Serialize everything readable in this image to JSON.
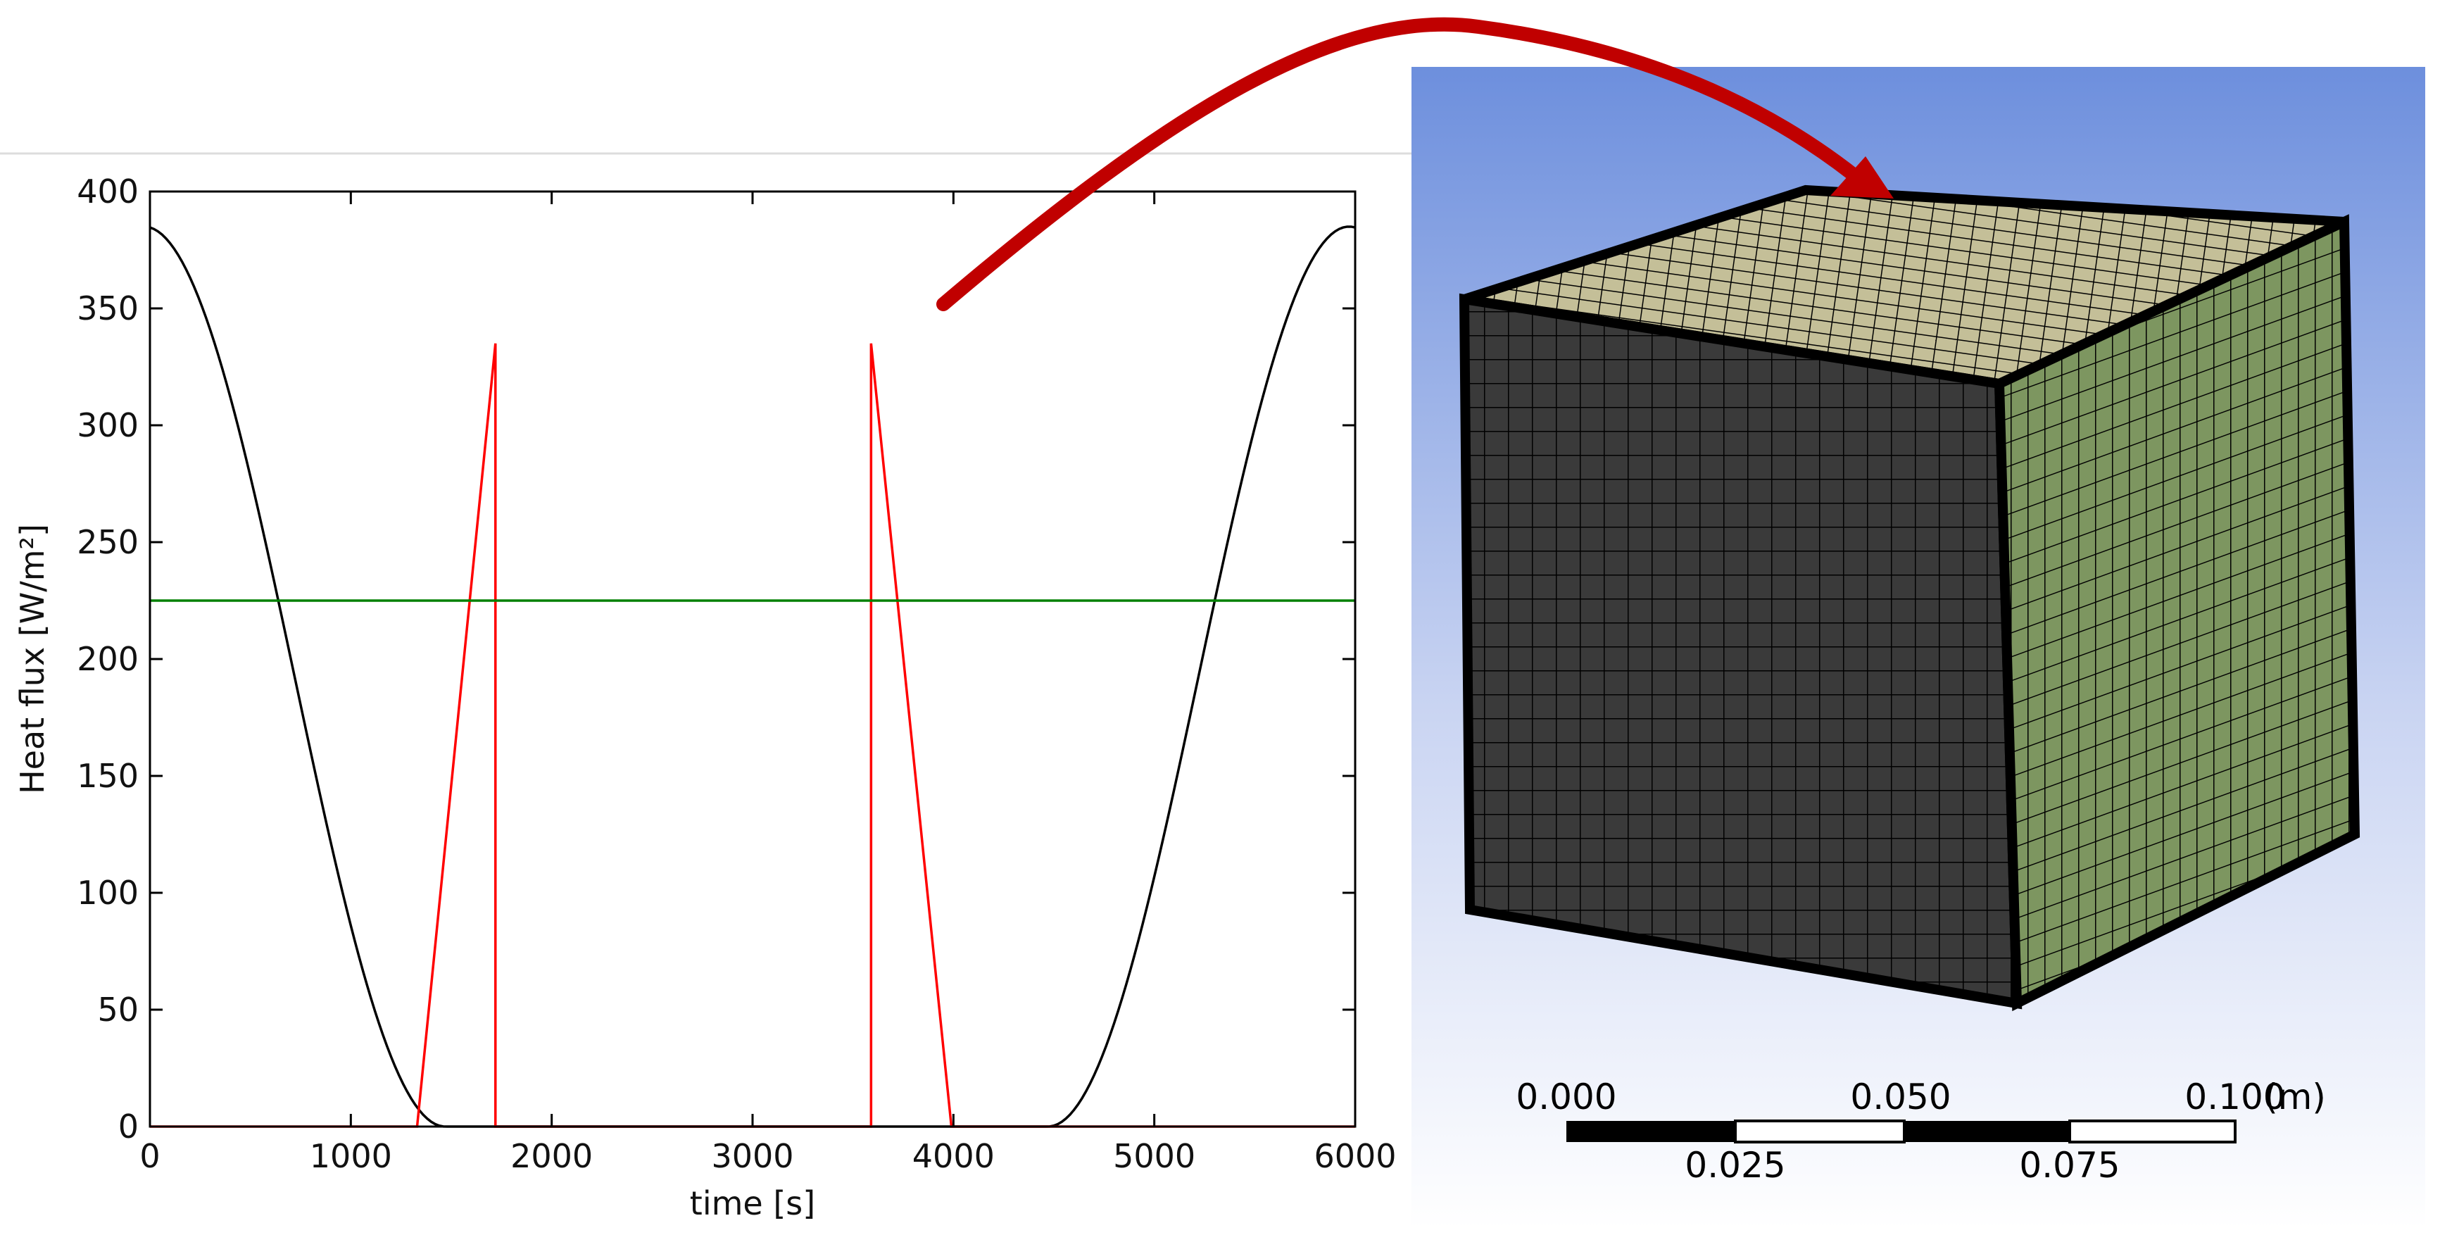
{
  "chart_data": {
    "type": "line",
    "xlabel": "time [s]",
    "ylabel": "Heat flux [W/m²]",
    "xlim": [
      0,
      6000
    ],
    "ylim": [
      0,
      400
    ],
    "xticks": [
      0,
      1000,
      2000,
      3000,
      4000,
      5000,
      6000
    ],
    "yticks": [
      0,
      50,
      100,
      150,
      200,
      250,
      300,
      350,
      400
    ],
    "grid": false,
    "legend": "none",
    "series": [
      {
        "color": "#000000",
        "shape": "cosine-daylight",
        "x": [
          0,
          300,
          600,
          900,
          1200,
          1500,
          4470,
          4770,
          5070,
          5370,
          5670,
          5970,
          6000
        ],
        "y": [
          385,
          346,
          245,
          126,
          31,
          0,
          0,
          31,
          126,
          245,
          346,
          385,
          384
        ]
      },
      {
        "color": "#ff0000",
        "shape": "triangular-pulses",
        "x": [
          0,
          1330,
          1720,
          1720,
          3590,
          3590,
          3990,
          6000
        ],
        "y": [
          0,
          0,
          335,
          0,
          0,
          335,
          0,
          0
        ]
      },
      {
        "color": "#008000",
        "shape": "constant",
        "x": [
          0,
          6000
        ],
        "y": [
          225,
          225
        ]
      }
    ]
  },
  "scale_bar": {
    "top_labels": [
      "0.000",
      "0.050",
      "0.100"
    ],
    "bottom_labels": [
      "0.025",
      "0.075"
    ],
    "unit": "(m)"
  },
  "colors": {
    "arrow": "#c00000",
    "viewport_top": "#6d8fdd",
    "viewport_bottom": "#ffffff",
    "cube_front": "#3a3a3a",
    "cube_top": "#c4bf98",
    "cube_side": "#7d9660",
    "mesh_line": "#000000"
  }
}
